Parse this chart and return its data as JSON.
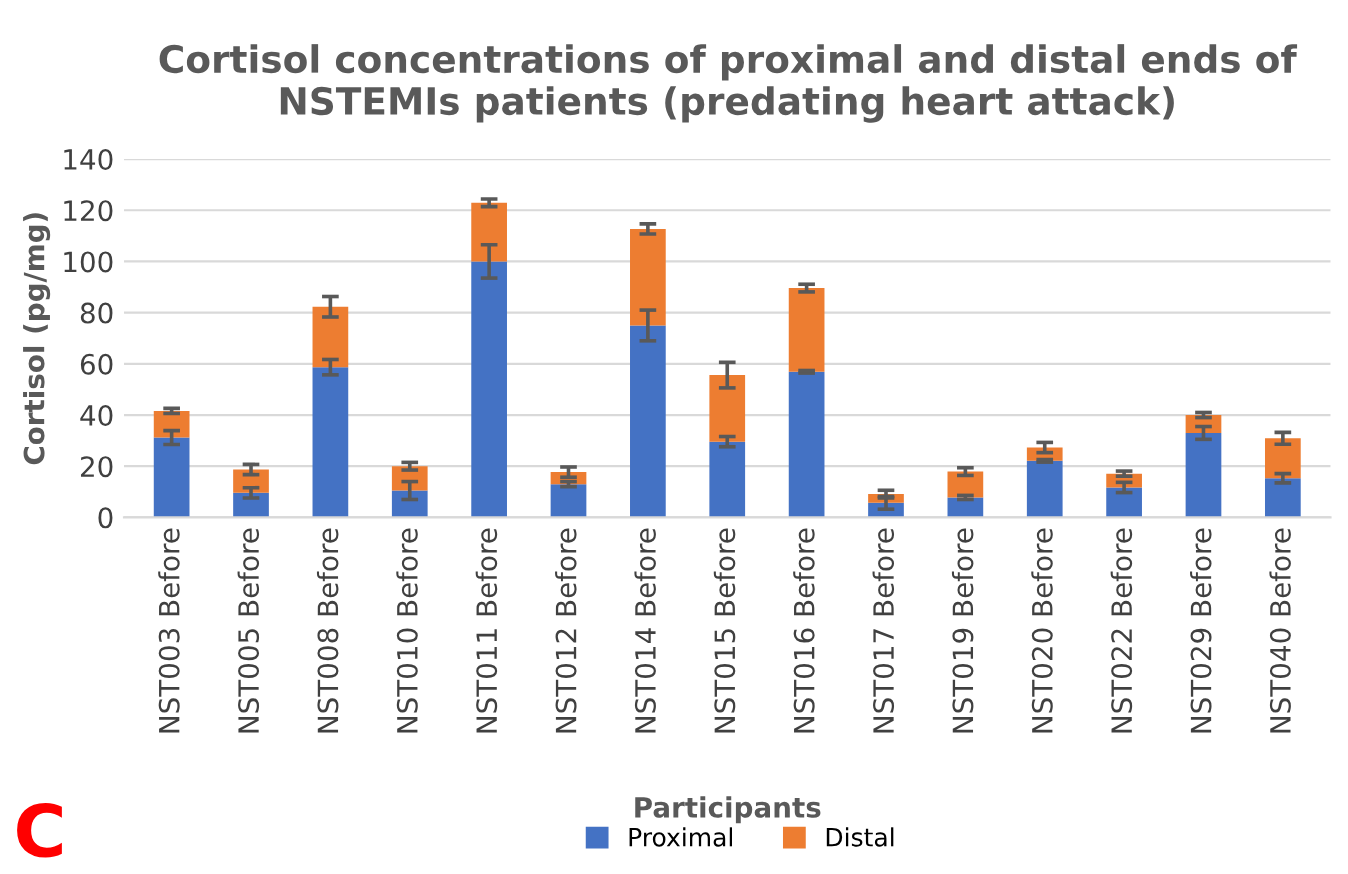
{
  "chart_data": {
    "type": "bar",
    "stacked": true,
    "title": "Cortisol concentrations of proximal and distal ends of\nNSTEMIs patients (predating heart attack)",
    "xlabel": "Participants",
    "ylabel": "Cortisol (pg/mg)",
    "categories": [
      "NST003 Before",
      "NST005 Before",
      "NST008 Before",
      "NST010 Before",
      "NST011 Before",
      "NST012 Before",
      "NST014 Before",
      "NST015 Before",
      "NST016 Before",
      "NST017 Before",
      "NST019 Before",
      "NST020 Before",
      "NST022 Before",
      "NST029 Before",
      "NST040 Before"
    ],
    "series": [
      {
        "name": "Proximal",
        "color": "#4472c4",
        "values": [
          31.2,
          9.6,
          58.7,
          10.5,
          100,
          13,
          75,
          29.6,
          56.9,
          5.7,
          7.8,
          22.1,
          11.7,
          33,
          15.3
        ],
        "errors": [
          2.7,
          2,
          3,
          3.5,
          6.5,
          1,
          6,
          2,
          0.5,
          2.5,
          0.8,
          0.5,
          2,
          2.5,
          1.8
        ]
      },
      {
        "name": "Distal",
        "color": "#ed7d31",
        "values": [
          10.4,
          9.1,
          23.6,
          9.5,
          22.9,
          4.7,
          37.7,
          26,
          32.7,
          3.4,
          10.1,
          5.2,
          5.4,
          7,
          15.6
        ],
        "errors": [
          1,
          2,
          4,
          1.5,
          1.5,
          2,
          2,
          5,
          1.5,
          1.5,
          1.5,
          2,
          1,
          1,
          2.3
        ]
      }
    ],
    "ylim": [
      0,
      140
    ],
    "yticks": [
      0,
      20,
      40,
      60,
      80,
      100,
      120,
      140
    ],
    "grid": "y",
    "legend": "bottom",
    "annotations": [
      "C"
    ]
  }
}
